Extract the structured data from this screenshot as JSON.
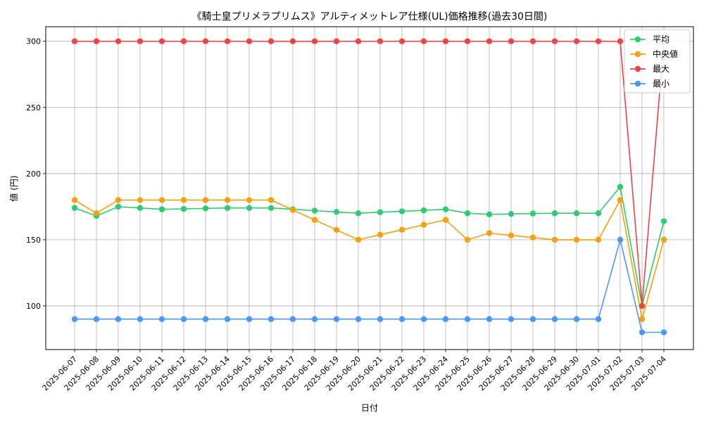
{
  "chart_data": {
    "type": "line",
    "title": "《騎士皇プリメラプリムス》アルティメットレア仕様(UL)価格推移(過去30日間)",
    "xlabel": "日付",
    "ylabel": "値 (円)",
    "ylim": [
      67,
      311
    ],
    "yticks": [
      100,
      150,
      200,
      250,
      300
    ],
    "grid": true,
    "legend_position": "top-right",
    "categories": [
      "2025-06-07",
      "2025-06-08",
      "2025-06-09",
      "2025-06-10",
      "2025-06-11",
      "2025-06-12",
      "2025-06-13",
      "2025-06-14",
      "2025-06-15",
      "2025-06-16",
      "2025-06-17",
      "2025-06-18",
      "2025-06-19",
      "2025-06-20",
      "2025-06-21",
      "2025-06-22",
      "2025-06-23",
      "2025-06-24",
      "2025-06-25",
      "2025-06-26",
      "2025-06-27",
      "2025-06-28",
      "2025-06-29",
      "2025-06-30",
      "2025-07-01",
      "2025-07-02",
      "2025-07-03",
      "2025-07-04"
    ],
    "series": [
      {
        "name": "平均",
        "color": "#2ecc71",
        "values": [
          174,
          168,
          175,
          174,
          173,
          173.3,
          173.7,
          174,
          174,
          174,
          173,
          172,
          171,
          170,
          170.8,
          171.5,
          172.2,
          173,
          170,
          169.2,
          169.5,
          169.8,
          170,
          170,
          170,
          190,
          100,
          164
        ]
      },
      {
        "name": "中央値",
        "color": "#f5a00c",
        "values": [
          180,
          170,
          180,
          180,
          180,
          180,
          180,
          180,
          180,
          180,
          172.5,
          165,
          157.5,
          150,
          153.8,
          157.5,
          161.3,
          165,
          150,
          155,
          153.3,
          151.7,
          150,
          150,
          150,
          180,
          90,
          150
        ]
      },
      {
        "name": "最大",
        "color": "#ef4444",
        "values": [
          300,
          300,
          300,
          300,
          300,
          300,
          300,
          300,
          300,
          300,
          300,
          300,
          300,
          300,
          300,
          300,
          300,
          300,
          300,
          300,
          300,
          300,
          300,
          300,
          300,
          300,
          100,
          300
        ]
      },
      {
        "name": "最小",
        "color": "#4a9af5",
        "values": [
          90,
          90,
          90,
          90,
          90,
          90,
          90,
          90,
          90,
          90,
          90,
          90,
          90,
          90,
          90,
          90,
          90,
          90,
          90,
          90,
          90,
          90,
          90,
          90,
          90,
          150,
          80,
          80
        ]
      }
    ]
  }
}
